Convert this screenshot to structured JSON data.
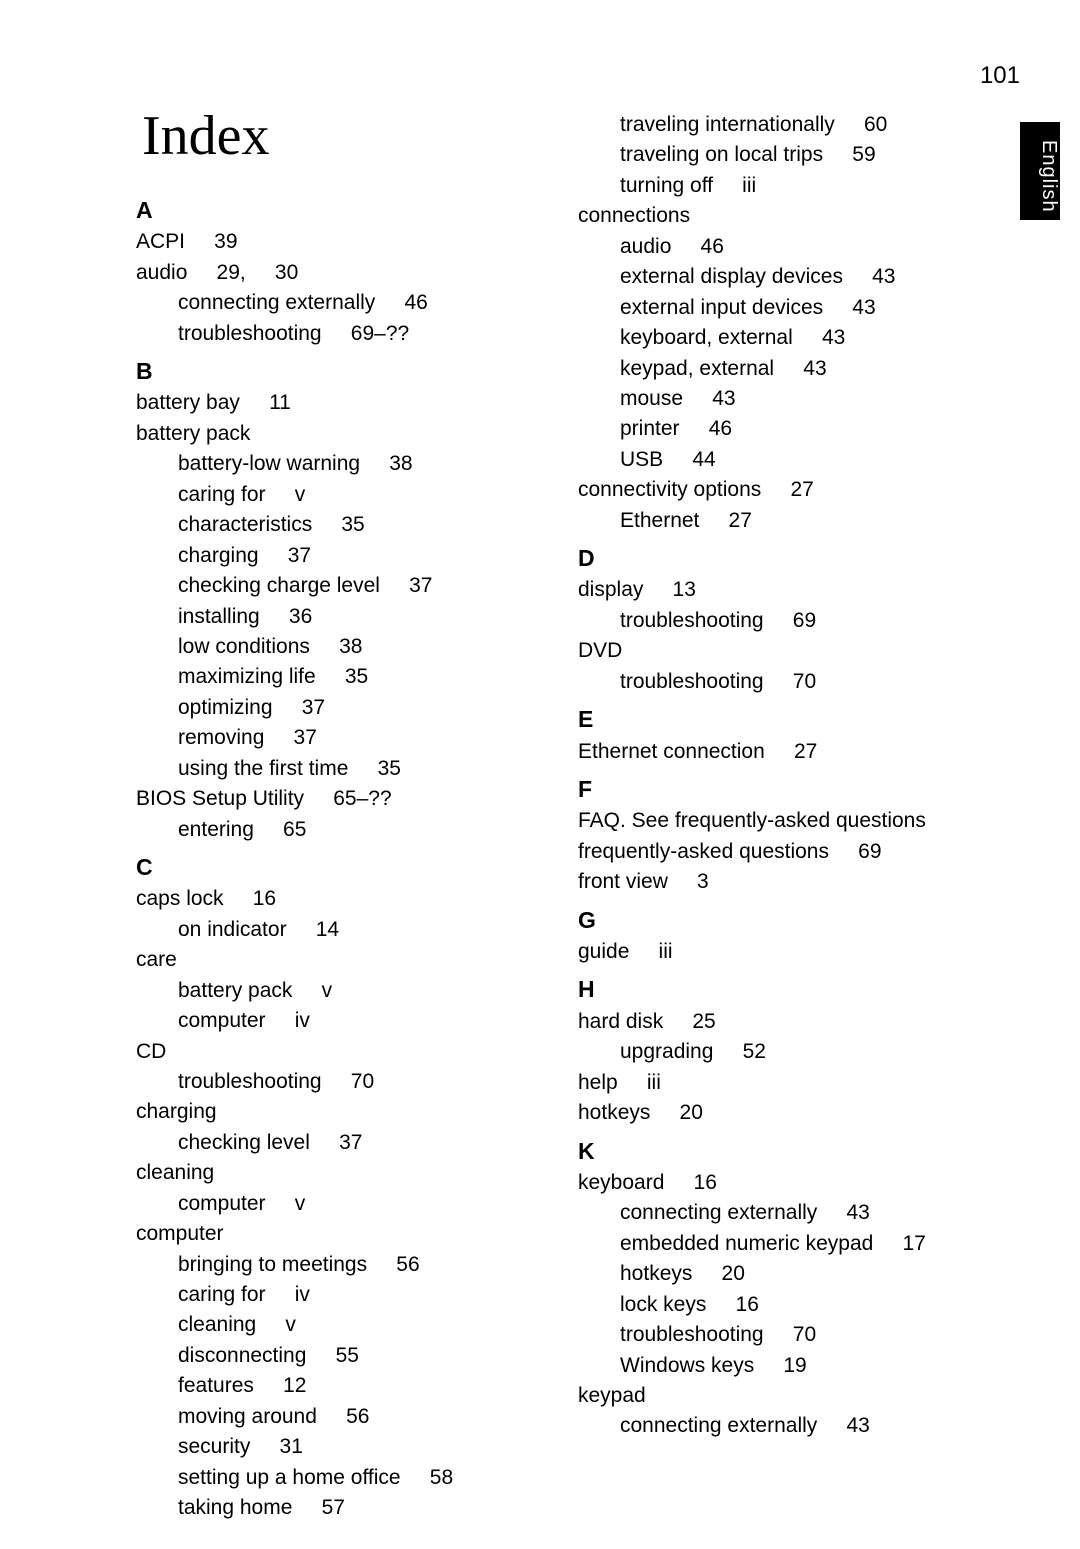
{
  "page_number": "101",
  "side_tab": "English",
  "title": "Index",
  "left_column": [
    {
      "type": "letter",
      "text": "A"
    },
    {
      "type": "entry",
      "text": "ACPI     39"
    },
    {
      "type": "entry",
      "text": "audio     29,     30"
    },
    {
      "type": "sub",
      "text": "connecting externally     46"
    },
    {
      "type": "sub",
      "text": "troubleshooting     69–??"
    },
    {
      "type": "letter",
      "text": "B"
    },
    {
      "type": "entry",
      "text": "battery bay     11"
    },
    {
      "type": "entry",
      "text": "battery pack"
    },
    {
      "type": "sub",
      "text": "battery-low warning     38"
    },
    {
      "type": "sub",
      "text": "caring for     v"
    },
    {
      "type": "sub",
      "text": "characteristics     35"
    },
    {
      "type": "sub",
      "text": "charging     37"
    },
    {
      "type": "sub",
      "text": "checking charge level     37"
    },
    {
      "type": "sub",
      "text": "installing     36"
    },
    {
      "type": "sub",
      "text": "low conditions     38"
    },
    {
      "type": "sub",
      "text": "maximizing life     35"
    },
    {
      "type": "sub",
      "text": "optimizing     37"
    },
    {
      "type": "sub",
      "text": "removing     37"
    },
    {
      "type": "sub",
      "text": "using the first time     35"
    },
    {
      "type": "entry",
      "text": "BIOS Setup Utility     65–??"
    },
    {
      "type": "sub",
      "text": "entering     65"
    },
    {
      "type": "letter",
      "text": "C"
    },
    {
      "type": "entry",
      "text": "caps lock     16"
    },
    {
      "type": "sub",
      "text": "on indicator     14"
    },
    {
      "type": "entry",
      "text": "care"
    },
    {
      "type": "sub",
      "text": "battery pack     v"
    },
    {
      "type": "sub",
      "text": "computer     iv"
    },
    {
      "type": "entry",
      "text": "CD"
    },
    {
      "type": "sub",
      "text": "troubleshooting     70"
    },
    {
      "type": "entry",
      "text": "charging"
    },
    {
      "type": "sub",
      "text": "checking level     37"
    },
    {
      "type": "entry",
      "text": "cleaning"
    },
    {
      "type": "sub",
      "text": "computer     v"
    },
    {
      "type": "entry",
      "text": "computer"
    },
    {
      "type": "sub",
      "text": "bringing to meetings     56"
    },
    {
      "type": "sub",
      "text": "caring for     iv"
    },
    {
      "type": "sub",
      "text": "cleaning     v"
    },
    {
      "type": "sub",
      "text": "disconnecting     55"
    },
    {
      "type": "sub",
      "text": "features     12"
    },
    {
      "type": "sub",
      "text": "moving around     56"
    },
    {
      "type": "sub",
      "text": "security     31"
    },
    {
      "type": "sub",
      "text": "setting up a home office     58"
    },
    {
      "type": "sub",
      "text": "taking home     57"
    }
  ],
  "right_column": [
    {
      "type": "sub",
      "text": "traveling internationally     60"
    },
    {
      "type": "sub",
      "text": "traveling on local trips     59"
    },
    {
      "type": "sub",
      "text": "turning off     iii"
    },
    {
      "type": "entry",
      "text": "connections"
    },
    {
      "type": "sub",
      "text": "audio     46"
    },
    {
      "type": "sub",
      "text": "external display devices     43"
    },
    {
      "type": "sub",
      "text": "external input devices     43"
    },
    {
      "type": "sub",
      "text": "keyboard, external     43"
    },
    {
      "type": "sub",
      "text": "keypad, external     43"
    },
    {
      "type": "sub",
      "text": "mouse     43"
    },
    {
      "type": "sub",
      "text": "printer     46"
    },
    {
      "type": "sub",
      "text": "USB     44"
    },
    {
      "type": "entry",
      "text": "connectivity options     27"
    },
    {
      "type": "sub",
      "text": "Ethernet     27"
    },
    {
      "type": "letter",
      "text": "D"
    },
    {
      "type": "entry",
      "text": "display     13"
    },
    {
      "type": "sub",
      "text": "troubleshooting     69"
    },
    {
      "type": "entry",
      "text": "DVD"
    },
    {
      "type": "sub",
      "text": "troubleshooting     70"
    },
    {
      "type": "letter",
      "text": "E"
    },
    {
      "type": "entry",
      "text": "Ethernet connection     27"
    },
    {
      "type": "letter",
      "text": "F"
    },
    {
      "type": "entry",
      "text": "FAQ. See frequently-asked questions"
    },
    {
      "type": "entry",
      "text": "frequently-asked questions     69"
    },
    {
      "type": "entry",
      "text": "front view     3"
    },
    {
      "type": "letter",
      "text": "G"
    },
    {
      "type": "entry",
      "text": "guide     iii"
    },
    {
      "type": "letter",
      "text": "H"
    },
    {
      "type": "entry",
      "text": "hard disk     25"
    },
    {
      "type": "sub",
      "text": "upgrading     52"
    },
    {
      "type": "entry",
      "text": "help     iii"
    },
    {
      "type": "entry",
      "text": "hotkeys     20"
    },
    {
      "type": "letter",
      "text": "K"
    },
    {
      "type": "entry",
      "text": "keyboard     16"
    },
    {
      "type": "sub",
      "text": "connecting externally     43"
    },
    {
      "type": "sub",
      "text": "embedded numeric keypad     17"
    },
    {
      "type": "sub",
      "text": "hotkeys     20"
    },
    {
      "type": "sub",
      "text": "lock keys     16"
    },
    {
      "type": "sub",
      "text": "troubleshooting     70"
    },
    {
      "type": "sub",
      "text": "Windows keys     19"
    },
    {
      "type": "entry",
      "text": "keypad"
    },
    {
      "type": "sub",
      "text": "connecting externally     43"
    }
  ]
}
